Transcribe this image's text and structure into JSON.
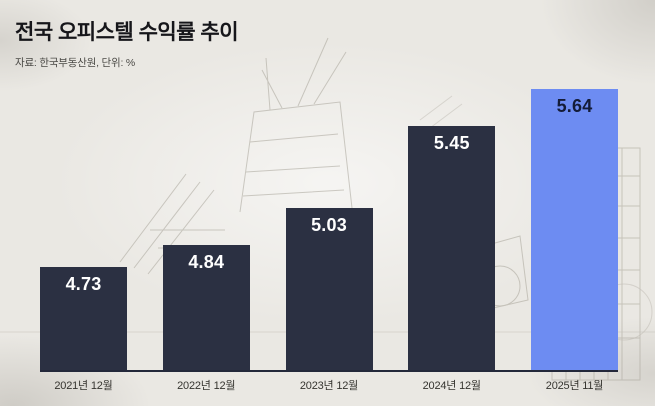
{
  "header": {
    "title": "전국 오피스텔 수익률 추이",
    "source": "자료: 한국부동산원, 단위: %"
  },
  "chart_data": {
    "type": "bar",
    "title": "전국 오피스텔 수익률 추이",
    "categories": [
      "2021년 12월",
      "2022년 12월",
      "2023년 12월",
      "2024년 12월",
      "2025년 11월"
    ],
    "values": [
      4.73,
      4.84,
      5.03,
      5.45,
      5.64
    ],
    "value_labels": [
      "4.73",
      "4.84",
      "5.03",
      "5.45",
      "5.64"
    ],
    "xlabel": "",
    "ylabel": "",
    "unit": "%",
    "ylim": [
      4.2,
      5.7
    ],
    "grid": false,
    "legend": false,
    "highlight_index": 4,
    "colors": {
      "bar": "#2b3042",
      "highlight_bar": "#6d8cf2",
      "value_label": "#ffffff",
      "highlight_value_label": "#141c38",
      "axis_line": "#23283a",
      "category_label": "#35342f",
      "background": "#eae8e3"
    }
  }
}
